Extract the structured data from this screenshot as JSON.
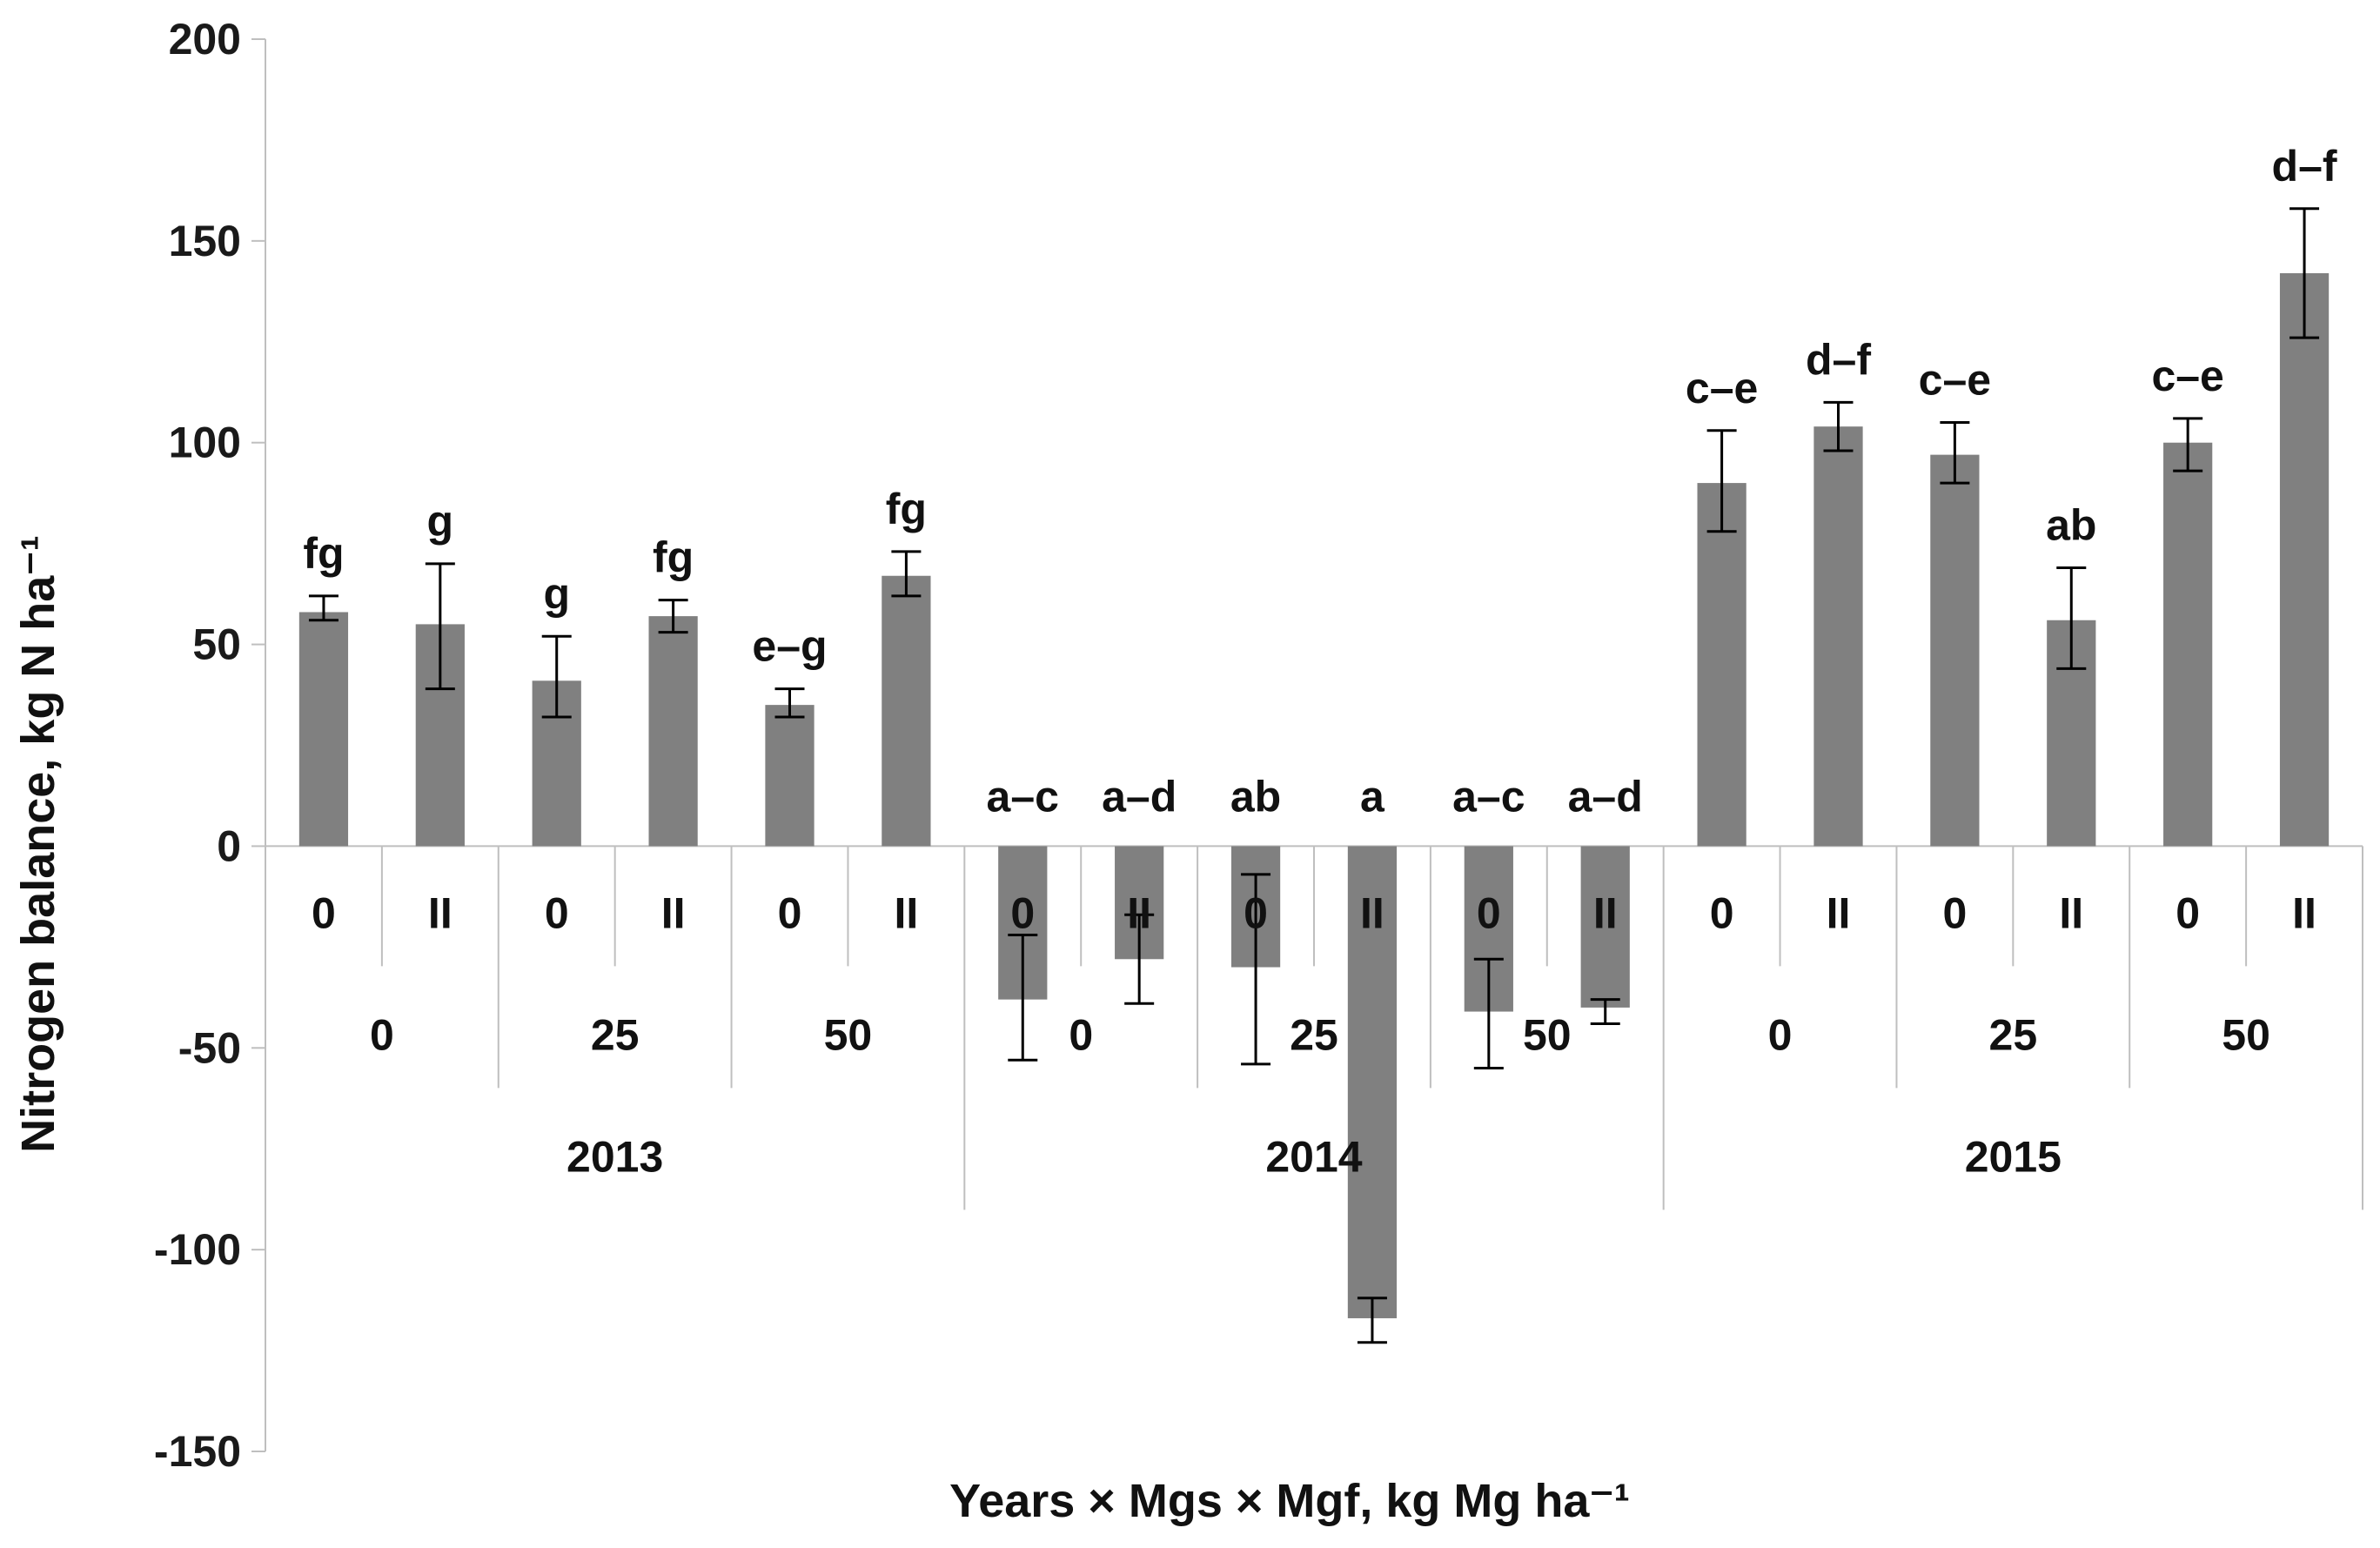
{
  "chart_data": {
    "type": "bar",
    "ylabel": "Nitrogen balance, kg N ha⁻¹",
    "xlabel": "Years × Mgs × Mgf, kg Mg ha⁻¹",
    "ylim": [
      -150,
      200
    ],
    "yticks": [
      200,
      150,
      100,
      50,
      0,
      -50,
      -100,
      -150
    ],
    "grid": false,
    "legend": "none",
    "bar_color": "#808080",
    "years": [
      {
        "label": "2013",
        "mgs": [
          "0",
          "25",
          "50"
        ]
      },
      {
        "label": "2014",
        "mgs": [
          "0",
          "25",
          "50"
        ]
      },
      {
        "label": "2015",
        "mgs": [
          "0",
          "25",
          "50"
        ]
      }
    ],
    "mgf_labels": [
      "0",
      "II"
    ],
    "values": [
      58,
      55,
      41,
      57,
      35,
      67,
      -38,
      -28,
      -30,
      -117,
      -41,
      -40,
      90,
      104,
      97,
      56,
      100,
      142
    ],
    "errors": [
      [
        56,
        62
      ],
      [
        39,
        70
      ],
      [
        32,
        52
      ],
      [
        53,
        61
      ],
      [
        32,
        39
      ],
      [
        62,
        73
      ],
      [
        -53,
        -22
      ],
      [
        -39,
        -17
      ],
      [
        -54,
        -7
      ],
      [
        -123,
        -112
      ],
      [
        -55,
        -28
      ],
      [
        -44,
        -38
      ],
      [
        78,
        103
      ],
      [
        98,
        110
      ],
      [
        90,
        105
      ],
      [
        44,
        69
      ],
      [
        93,
        106
      ],
      [
        126,
        158
      ]
    ],
    "letters": [
      "fg",
      "g",
      "g",
      "fg",
      "e–g",
      "fg",
      "a–c",
      "a–d",
      "ab",
      "a",
      "a–c",
      "a–d",
      "c–e",
      "d–f",
      "c–e",
      "ab",
      "c–e",
      "d–f"
    ]
  }
}
